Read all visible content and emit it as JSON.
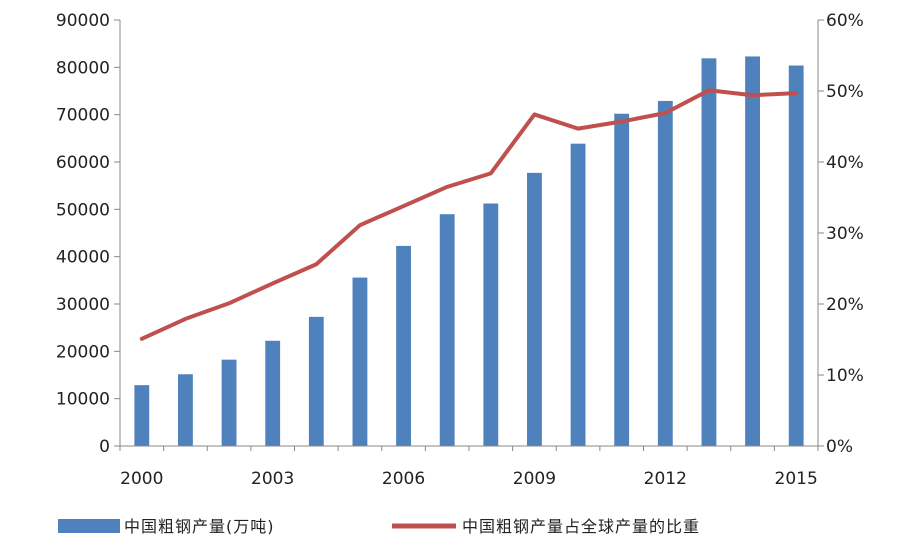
{
  "chart_data": {
    "type": "bar",
    "x": [
      2000,
      2001,
      2002,
      2003,
      2004,
      2005,
      2006,
      2007,
      2008,
      2009,
      2010,
      2011,
      2012,
      2013,
      2014,
      2015
    ],
    "x_tick_labels": [
      "2000",
      "2003",
      "2006",
      "2009",
      "2012",
      "2015"
    ],
    "series": [
      {
        "name": "中国粗钢产量(万吨)",
        "type": "bar",
        "axis": "left",
        "color": "#4f81bd",
        "values": [
          12850,
          15160,
          18240,
          22230,
          27280,
          35580,
          42270,
          48970,
          51230,
          57710,
          63870,
          70200,
          72900,
          81900,
          82300,
          80380
        ]
      },
      {
        "name": "中国粗钢产量占全球产量的比重",
        "type": "line",
        "axis": "right",
        "color": "#c0504d",
        "values": [
          0.151,
          0.179,
          0.201,
          0.229,
          0.256,
          0.311,
          0.338,
          0.365,
          0.384,
          0.467,
          0.447,
          0.457,
          0.469,
          0.501,
          0.494,
          0.497
        ]
      }
    ],
    "y_left": {
      "ylim": [
        0,
        90000
      ],
      "ticks": [
        0,
        10000,
        20000,
        30000,
        40000,
        50000,
        60000,
        70000,
        80000,
        90000
      ],
      "tick_labels": [
        "0",
        "10000",
        "20000",
        "30000",
        "40000",
        "50000",
        "60000",
        "70000",
        "80000",
        "90000"
      ]
    },
    "y_right": {
      "ylim": [
        0,
        0.6
      ],
      "ticks": [
        0,
        0.1,
        0.2,
        0.3,
        0.4,
        0.5,
        0.6
      ],
      "tick_labels": [
        "0%",
        "10%",
        "20%",
        "30%",
        "40%",
        "50%",
        "60%"
      ]
    },
    "grid": false,
    "legend_position": "bottom",
    "title": "",
    "xlabel": "",
    "ylabel": ""
  }
}
